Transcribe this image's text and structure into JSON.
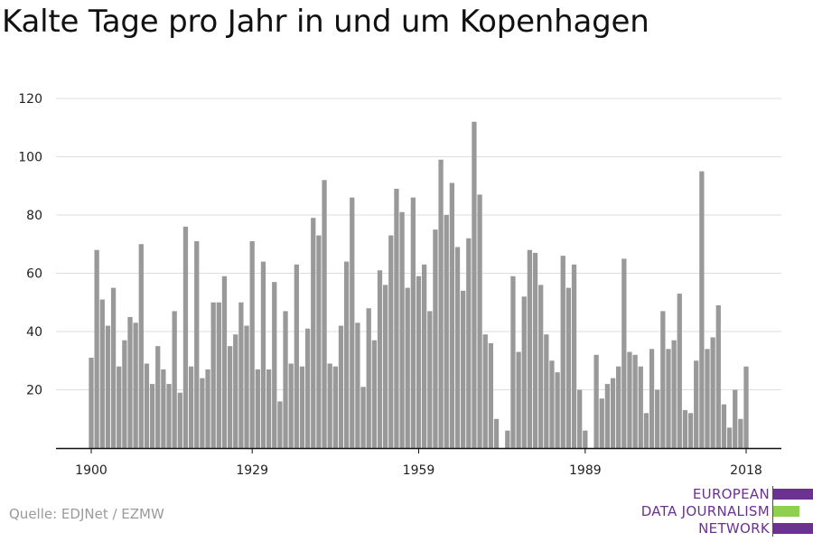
{
  "title": "Kalte Tage pro Jahr in und um Kopenhagen",
  "source": "Quelle: EDJNet / EZMW",
  "logo": {
    "lines": [
      "EUROPEAN",
      "DATA JOURNALISM",
      "NETWORK"
    ],
    "colors": {
      "purple": "#6b3291",
      "green": "#8fd14f"
    }
  },
  "colors": {
    "bar": "#999999",
    "grid": "#dddddd",
    "axis": "#111111"
  },
  "chart_data": {
    "type": "bar",
    "title": "Kalte Tage pro Jahr in und um Kopenhagen",
    "xlabel": "",
    "ylabel": "",
    "ylim": [
      0,
      120
    ],
    "yticks": [
      20,
      40,
      60,
      80,
      100,
      120
    ],
    "xticks": [
      1900,
      1929,
      1959,
      1989,
      2018
    ],
    "grid": true,
    "x": [
      1900,
      1901,
      1902,
      1903,
      1904,
      1905,
      1906,
      1907,
      1908,
      1909,
      1910,
      1911,
      1912,
      1913,
      1914,
      1915,
      1916,
      1917,
      1918,
      1919,
      1920,
      1921,
      1922,
      1923,
      1924,
      1925,
      1926,
      1927,
      1928,
      1929,
      1930,
      1931,
      1932,
      1933,
      1934,
      1935,
      1936,
      1937,
      1938,
      1939,
      1940,
      1941,
      1942,
      1943,
      1944,
      1945,
      1946,
      1947,
      1948,
      1949,
      1950,
      1951,
      1952,
      1953,
      1954,
      1955,
      1956,
      1957,
      1958,
      1959,
      1960,
      1961,
      1962,
      1963,
      1964,
      1965,
      1966,
      1967,
      1968,
      1969,
      1970,
      1971,
      1972,
      1973,
      1974,
      1975,
      1976,
      1977,
      1978,
      1979,
      1980,
      1981,
      1982,
      1983,
      1984,
      1985,
      1986,
      1987,
      1988,
      1989,
      1990,
      1991,
      1992,
      1993,
      1994,
      1995,
      1996,
      1997,
      1998,
      1999,
      2000,
      2001,
      2002,
      2003,
      2004,
      2005,
      2006,
      2007,
      2008,
      2009,
      2010,
      2011,
      2012,
      2013,
      2014,
      2015,
      2016,
      2017,
      2018
    ],
    "values": [
      31,
      68,
      51,
      42,
      55,
      28,
      37,
      45,
      43,
      70,
      29,
      22,
      35,
      27,
      22,
      47,
      19,
      76,
      28,
      71,
      24,
      27,
      50,
      50,
      59,
      35,
      39,
      50,
      42,
      71,
      27,
      64,
      27,
      57,
      16,
      47,
      29,
      63,
      28,
      41,
      79,
      73,
      92,
      29,
      28,
      42,
      64,
      86,
      43,
      21,
      48,
      37,
      61,
      56,
      73,
      89,
      81,
      55,
      86,
      59,
      63,
      47,
      75,
      99,
      80,
      91,
      69,
      54,
      72,
      112,
      87,
      39,
      36,
      10,
      0,
      6,
      59,
      33,
      52,
      68,
      67,
      56,
      39,
      30,
      26,
      66,
      55,
      63,
      20,
      6,
      0,
      32,
      17,
      22,
      24,
      28,
      65,
      33,
      32,
      28,
      12,
      34,
      20,
      47,
      34,
      37,
      53,
      13,
      12,
      30,
      95,
      34,
      38,
      49,
      15,
      7,
      20,
      10,
      28
    ]
  }
}
